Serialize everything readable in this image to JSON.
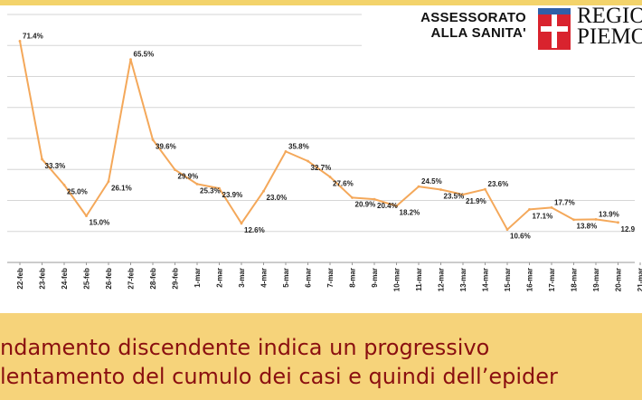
{
  "header": {
    "assessorato_line1": "ASSESSORATO",
    "assessorato_line2": "ALLA SANITA'",
    "region_line1": "REGIO",
    "region_line2": "PIEMO"
  },
  "footer": {
    "line1": "ndamento discendente indica un progressivo",
    "line2": "lentamento del cumulo dei casi e quindi dell’epider"
  },
  "colors": {
    "line": "#f4a85a",
    "footer_bg": "#f6d37a",
    "footer_text": "#8a0f10",
    "flag_red": "#d9232e"
  },
  "chart_data": {
    "type": "line",
    "categories": [
      "22-feb",
      "23-feb",
      "24-feb",
      "25-feb",
      "26-feb",
      "27-feb",
      "28-feb",
      "29-feb",
      "1-mar",
      "2-mar",
      "3-mar",
      "4-mar",
      "5-mar",
      "6-mar",
      "7-mar",
      "8-mar",
      "9-mar",
      "10-mar",
      "11-mar",
      "12-mar",
      "13-mar",
      "14-mar",
      "15-mar",
      "16-mar",
      "17-mar",
      "18-mar",
      "19-mar",
      "20-mar",
      "21-mar"
    ],
    "values": [
      71.4,
      33.3,
      25.0,
      15.0,
      26.1,
      65.5,
      39.6,
      29.9,
      25.3,
      23.9,
      12.6,
      23.0,
      35.8,
      32.7,
      27.6,
      20.9,
      20.4,
      18.2,
      24.5,
      23.5,
      21.9,
      23.6,
      10.6,
      17.1,
      17.7,
      13.8,
      13.9,
      12.9
    ],
    "labels": [
      "71.4%",
      "33.3%",
      "25.0%",
      "15.0%",
      "26.1%",
      "65.5%",
      "39.6%",
      "29.9%",
      "25.3%",
      "23.9%",
      "12.6%",
      "23.0%",
      "35.8%",
      "32.7%",
      "27.6%",
      "20.9%",
      "20.4%",
      "18.2%",
      "24.5%",
      "23.5%",
      "21.9%",
      "23.6%",
      "10.6%",
      "17.1%",
      "17.7%",
      "13.8%",
      "13.9%",
      "12.9"
    ],
    "ylim": [
      0,
      80
    ],
    "grid": "horizontal"
  }
}
